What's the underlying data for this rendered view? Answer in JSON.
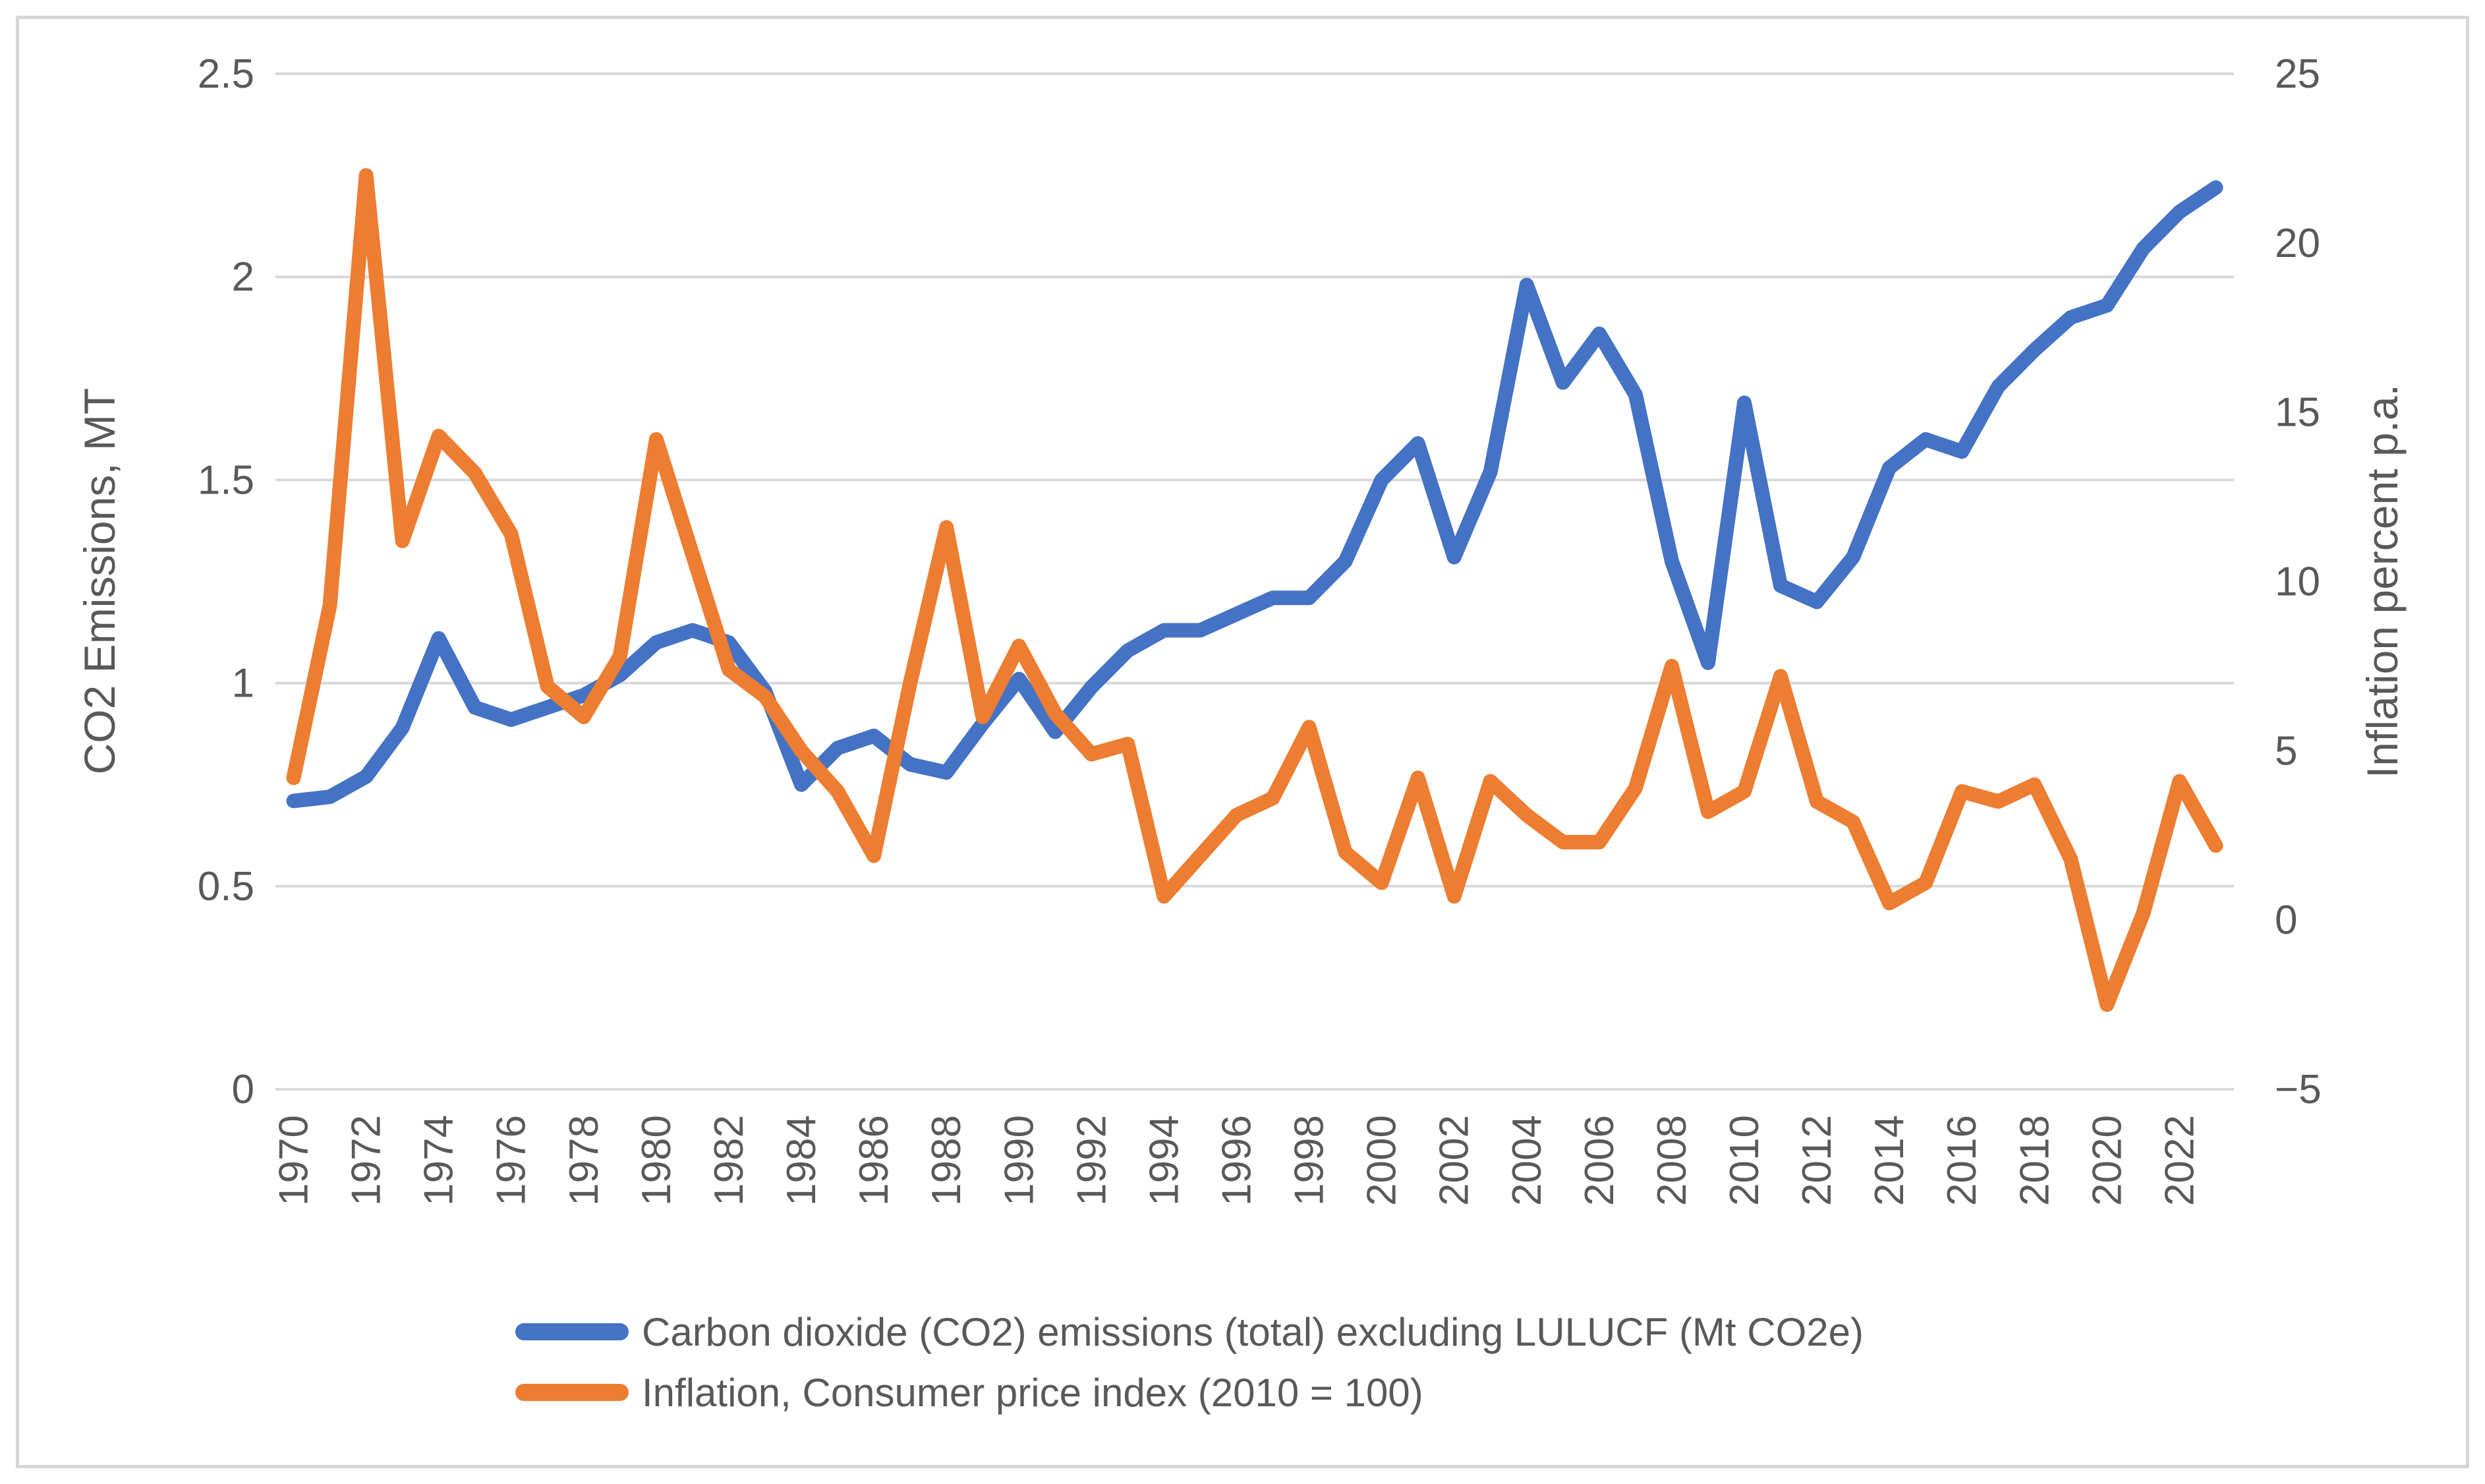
{
  "chart_data": {
    "type": "line",
    "title": "",
    "grid": "horizontal",
    "legend_position": "bottom-left",
    "x": [
      1970,
      1971,
      1972,
      1973,
      1974,
      1975,
      1976,
      1977,
      1978,
      1979,
      1980,
      1981,
      1982,
      1983,
      1984,
      1985,
      1986,
      1987,
      1988,
      1989,
      1990,
      1991,
      1992,
      1993,
      1994,
      1995,
      1996,
      1997,
      1998,
      1999,
      2000,
      2001,
      2002,
      2003,
      2004,
      2005,
      2006,
      2007,
      2008,
      2009,
      2010,
      2011,
      2012,
      2013,
      2014,
      2015,
      2016,
      2017,
      2018,
      2019,
      2020,
      2021,
      2022,
      2023
    ],
    "x_axis": {
      "tick_labels": [
        "1970",
        "1972",
        "1974",
        "1976",
        "1978",
        "1980",
        "1982",
        "1984",
        "1986",
        "1988",
        "1990",
        "1992",
        "1994",
        "1996",
        "1998",
        "2000",
        "2002",
        "2004",
        "2006",
        "2008",
        "2010",
        "2012",
        "2014",
        "2016",
        "2018",
        "2020",
        "2022"
      ]
    },
    "left_axis": {
      "label": "CO2 Emissions, MT",
      "min": 0,
      "max": 2.5,
      "step": 0.5,
      "ticks": [
        {
          "v": 0,
          "label": "0"
        },
        {
          "v": 0.5,
          "label": "0.5"
        },
        {
          "v": 1,
          "label": "1"
        },
        {
          "v": 1.5,
          "label": "1.5"
        },
        {
          "v": 2,
          "label": "2"
        },
        {
          "v": 2.5,
          "label": "2.5"
        }
      ]
    },
    "right_axis": {
      "label": "Inflation percent p.a.",
      "min": -5,
      "max": 25,
      "step": 5,
      "ticks": [
        {
          "v": -5,
          "label": "−5"
        },
        {
          "v": 0,
          "label": "0"
        },
        {
          "v": 5,
          "label": "5"
        },
        {
          "v": 10,
          "label": "10"
        },
        {
          "v": 15,
          "label": "15"
        },
        {
          "v": 20,
          "label": "20"
        },
        {
          "v": 25,
          "label": "25"
        }
      ]
    },
    "series": [
      {
        "name": "Carbon dioxide (CO2) emissions (total) excluding LULUCF (Mt CO2e)",
        "axis": "left",
        "color": "#4472C4",
        "values": [
          0.71,
          0.72,
          0.77,
          0.89,
          1.11,
          0.94,
          0.91,
          0.94,
          0.97,
          1.02,
          1.1,
          1.13,
          1.1,
          0.98,
          0.75,
          0.84,
          0.87,
          0.8,
          0.78,
          0.9,
          1.01,
          0.88,
          0.99,
          1.08,
          1.13,
          1.13,
          1.17,
          1.21,
          1.21,
          1.3,
          1.5,
          1.59,
          1.31,
          1.52,
          1.98,
          1.74,
          1.86,
          1.71,
          1.3,
          1.05,
          1.69,
          1.24,
          1.2,
          1.31,
          1.53,
          1.6,
          1.57,
          1.73,
          1.82,
          1.9,
          1.93,
          2.07,
          2.16,
          2.22
        ]
      },
      {
        "name": "Inflation, Consumer price index (2010 = 100)",
        "axis": "right",
        "color": "#ED7D31",
        "values": [
          4.2,
          9.3,
          22.0,
          11.2,
          14.3,
          13.2,
          11.4,
          6.9,
          6.0,
          7.8,
          14.2,
          10.8,
          7.4,
          6.6,
          5.0,
          3.8,
          1.9,
          7.0,
          11.6,
          6.0,
          8.1,
          6.1,
          4.9,
          5.2,
          0.7,
          1.9,
          3.1,
          3.6,
          5.7,
          2.0,
          1.1,
          4.2,
          0.7,
          4.1,
          3.1,
          2.3,
          2.3,
          3.9,
          7.5,
          3.2,
          3.8,
          7.2,
          3.5,
          2.9,
          0.5,
          1.1,
          3.8,
          3.5,
          4.0,
          1.8,
          -2.5,
          0.2,
          4.1,
          2.2
        ]
      }
    ],
    "style": {
      "gridline_color": "#D9D9D9",
      "axis_line_color": "#D9D9D9",
      "text_color": "#595959",
      "line_width": 22
    }
  }
}
